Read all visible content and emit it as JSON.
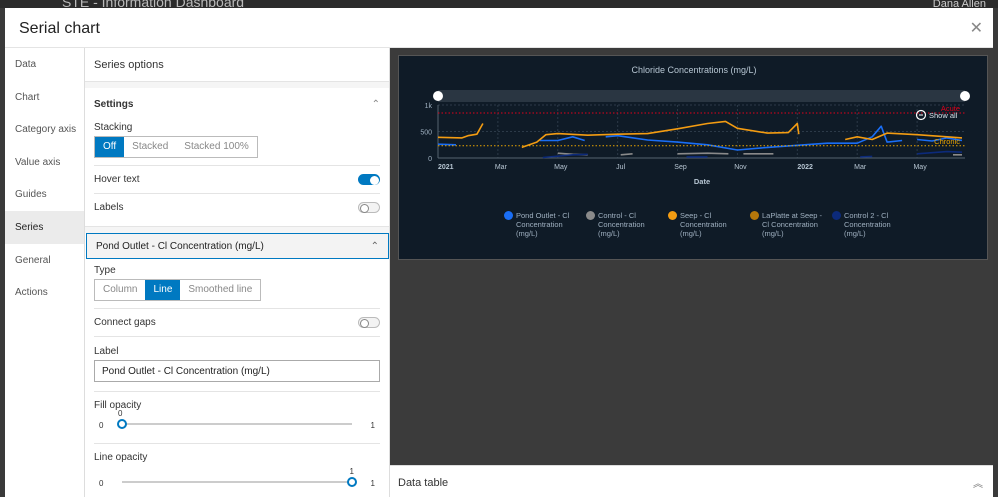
{
  "app": {
    "title": "STE - Information Dashboard",
    "user": "Dana Allen"
  },
  "modal": {
    "title": "Serial chart",
    "close_icon": "close-icon"
  },
  "nav": {
    "items": [
      "Data",
      "Chart",
      "Category axis",
      "Value axis",
      "Guides",
      "Series",
      "General",
      "Actions"
    ],
    "active": "Series"
  },
  "panel": {
    "title": "Series options",
    "settings": {
      "label": "Settings",
      "stacking_label": "Stacking",
      "stacking_options": [
        "Off",
        "Stacked",
        "Stacked 100%"
      ],
      "stacking_selected": "Off",
      "hover_text_label": "Hover text",
      "hover_text_on": true,
      "labels_label": "Labels",
      "labels_on": false
    },
    "series": {
      "header": "Pond Outlet - Cl Concentration (mg/L)",
      "type_label": "Type",
      "type_options": [
        "Column",
        "Line",
        "Smoothed line"
      ],
      "type_selected": "Line",
      "connect_gaps_label": "Connect gaps",
      "connect_gaps_on": false,
      "label_label": "Label",
      "label_value": "Pond Outlet - Cl Concentration (mg/L)",
      "fill_opacity_label": "Fill opacity",
      "fill_opacity_value": "0",
      "fill_opacity_min": "0",
      "fill_opacity_max": "1",
      "fill_opacity": 0,
      "line_opacity_label": "Line opacity",
      "line_opacity_value": "1",
      "line_opacity_min": "0",
      "line_opacity_max": "1",
      "line_opacity": 1
    }
  },
  "data_table": {
    "label": "Data table"
  },
  "chart_data": {
    "type": "line",
    "title": "Chloride Concentrations (mg/L)",
    "xlabel": "Date",
    "ylabel": "",
    "ylim": [
      0,
      1000
    ],
    "yticks": [
      {
        "v": 0,
        "label": "0"
      },
      {
        "v": 500,
        "label": "500"
      },
      {
        "v": 1000,
        "label": "1k"
      }
    ],
    "xlim": [
      0,
      17.6
    ],
    "xticks": [
      {
        "v": 0,
        "label": "2021",
        "bold": true
      },
      {
        "v": 2,
        "label": "Mar"
      },
      {
        "v": 4,
        "label": "May"
      },
      {
        "v": 6,
        "label": "Jul"
      },
      {
        "v": 8,
        "label": "Sep"
      },
      {
        "v": 10,
        "label": "Nov"
      },
      {
        "v": 12,
        "label": "2022",
        "bold": true
      },
      {
        "v": 14,
        "label": "Mar"
      },
      {
        "v": 16,
        "label": "May"
      }
    ],
    "guides": [
      {
        "label": "Acute",
        "value": 850,
        "color": "#e0001b"
      },
      {
        "label": "Chronic",
        "value": 230,
        "color": "#e8a300"
      }
    ],
    "zoom_label": "Show all",
    "series": [
      {
        "name": "Pond Outlet - Cl Concentration (mg/L)",
        "color": "#1a6ef5",
        "points": [
          [
            0,
            260
          ],
          [
            0.6,
            250
          ],
          null,
          [
            3.4,
            330
          ],
          [
            4,
            330
          ],
          [
            4.5,
            400
          ],
          [
            4.9,
            330
          ],
          null,
          [
            5.6,
            400
          ],
          [
            6,
            420
          ],
          [
            7,
            340
          ],
          [
            8,
            300
          ],
          [
            9,
            250
          ],
          [
            10,
            150
          ],
          [
            11,
            200
          ],
          [
            12,
            240
          ],
          [
            13,
            280
          ],
          [
            14,
            280
          ],
          [
            14.5,
            400
          ],
          [
            14.8,
            600
          ],
          [
            15,
            300
          ],
          [
            15.5,
            330
          ],
          null,
          [
            16,
            350
          ],
          [
            16.5,
            320
          ],
          [
            17,
            380
          ],
          [
            17.5,
            330
          ]
        ]
      },
      {
        "name": "Control - Cl Concentration (mg/L)",
        "color": "#8a8a8a",
        "points": [
          [
            4,
            90
          ],
          [
            4.5,
            70
          ],
          [
            5,
            60
          ],
          null,
          [
            6.1,
            60
          ],
          [
            6.5,
            80
          ],
          null,
          [
            8,
            80
          ],
          [
            9,
            90
          ],
          [
            9.7,
            80
          ],
          null,
          [
            10.2,
            80
          ],
          [
            11.2,
            80
          ],
          null,
          [
            17.2,
            60
          ],
          [
            17.5,
            60
          ]
        ]
      },
      {
        "name": "Seep - Cl Concentration (mg/L)",
        "color": "#f39c12",
        "points": [
          [
            0,
            390
          ],
          [
            0.8,
            380
          ],
          [
            1,
            420
          ],
          [
            1.3,
            450
          ],
          [
            1.5,
            650
          ],
          null,
          [
            2.8,
            200
          ],
          [
            3.3,
            300
          ],
          [
            3.6,
            440
          ],
          [
            4,
            460
          ],
          [
            5,
            430
          ],
          [
            6,
            450
          ],
          [
            7,
            460
          ],
          [
            8,
            550
          ],
          [
            9,
            650
          ],
          [
            9.6,
            690
          ],
          [
            10,
            560
          ],
          [
            11,
            470
          ],
          [
            11.7,
            480
          ],
          [
            12,
            650
          ],
          [
            12.05,
            450
          ],
          null,
          [
            13.6,
            350
          ],
          [
            14,
            400
          ],
          [
            14.5,
            350
          ],
          [
            15,
            470
          ],
          [
            16,
            440
          ],
          [
            17,
            400
          ],
          [
            17.5,
            380
          ]
        ]
      },
      {
        "name": "LaPlatte at Seep - Cl Concentration (mg/L)",
        "color": "#b5770b",
        "points": []
      },
      {
        "name": "Control 2 - Cl Concentration (mg/L)",
        "color": "#0c2a7a",
        "points": [
          [
            3.5,
            10
          ],
          [
            4.5,
            60
          ],
          [
            5,
            70
          ],
          null,
          [
            8.3,
            20
          ],
          [
            9,
            20
          ],
          null,
          [
            14.1,
            20
          ],
          [
            14.5,
            30
          ],
          null,
          [
            16,
            80
          ],
          [
            17,
            120
          ],
          [
            17.5,
            110
          ]
        ]
      }
    ]
  }
}
